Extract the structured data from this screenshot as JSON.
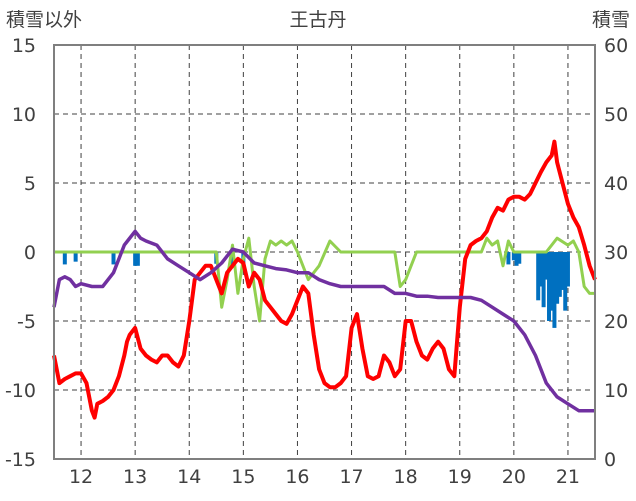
{
  "chart_data": {
    "type": "line",
    "title": "王古丹",
    "ylabel_left": "積雪以外",
    "ylabel_right": "積雪",
    "x_ticks": [
      "12",
      "13",
      "14",
      "15",
      "16",
      "17",
      "18",
      "19",
      "20",
      "21"
    ],
    "xlim": [
      11.5,
      21.5
    ],
    "ylim_left": [
      -15,
      15
    ],
    "ylim_right": [
      0,
      60
    ],
    "y_ticks_left": [
      "15",
      "10",
      "5",
      "0",
      "-5",
      "-10",
      "-15"
    ],
    "y_ticks_right": [
      "60",
      "50",
      "40",
      "30",
      "20",
      "10",
      "0"
    ],
    "grid": "dashed vertical at days, horizontal at y ticks",
    "colors": {
      "red": "#ff0000",
      "purple": "#7030a0",
      "green": "#92d050",
      "blue": "#0070c0",
      "axis": "#7f7f7f"
    },
    "series": [
      {
        "color": "#ff0000",
        "axis": "left",
        "x": [
          11.5,
          11.6,
          11.7,
          11.8,
          11.9,
          12.0,
          12.1,
          12.2,
          12.25,
          12.3,
          12.4,
          12.5,
          12.6,
          12.7,
          12.8,
          12.85,
          12.9,
          13.0,
          13.1,
          13.2,
          13.3,
          13.4,
          13.5,
          13.6,
          13.7,
          13.8,
          13.9,
          14.0,
          14.1,
          14.2,
          14.3,
          14.4,
          14.5,
          14.6,
          14.7,
          14.8,
          14.9,
          15.0,
          15.1,
          15.2,
          15.3,
          15.4,
          15.5,
          15.6,
          15.7,
          15.8,
          15.9,
          16.0,
          16.1,
          16.2,
          16.3,
          16.4,
          16.5,
          16.6,
          16.7,
          16.8,
          16.9,
          17.0,
          17.1,
          17.2,
          17.3,
          17.4,
          17.5,
          17.6,
          17.7,
          17.8,
          17.9,
          18.0,
          18.1,
          18.2,
          18.3,
          18.4,
          18.5,
          18.6,
          18.7,
          18.8,
          18.9,
          19.0,
          19.1,
          19.2,
          19.3,
          19.4,
          19.5,
          19.6,
          19.7,
          19.8,
          19.9,
          20.0,
          20.1,
          20.2,
          20.3,
          20.4,
          20.5,
          20.6,
          20.7,
          20.75,
          20.8,
          20.9,
          21.0,
          21.1,
          21.2,
          21.3,
          21.4,
          21.5
        ],
        "values": [
          -7.5,
          -9.5,
          -9.2,
          -9.0,
          -8.8,
          -8.8,
          -9.5,
          -11.5,
          -12.0,
          -11.0,
          -10.8,
          -10.5,
          -10.0,
          -9.0,
          -7.5,
          -6.5,
          -6.0,
          -5.5,
          -7.0,
          -7.5,
          -7.8,
          -8.0,
          -7.5,
          -7.5,
          -8.0,
          -8.3,
          -7.5,
          -5.0,
          -2.0,
          -1.5,
          -1.0,
          -1.0,
          -2.0,
          -3.0,
          -1.5,
          -1.0,
          -0.5,
          -0.8,
          -2.5,
          -1.5,
          -2.0,
          -3.5,
          -4.0,
          -4.5,
          -5.0,
          -5.2,
          -4.5,
          -3.5,
          -2.5,
          -3.0,
          -6.0,
          -8.5,
          -9.5,
          -9.8,
          -9.8,
          -9.5,
          -9.0,
          -5.5,
          -4.5,
          -7.0,
          -9.0,
          -9.2,
          -9.0,
          -7.5,
          -8.0,
          -9.0,
          -8.5,
          -5.0,
          -5.0,
          -6.5,
          -7.5,
          -7.8,
          -7.0,
          -6.5,
          -7.0,
          -8.5,
          -9.0,
          -4.0,
          -0.5,
          0.5,
          0.8,
          1.0,
          1.5,
          2.5,
          3.2,
          3.0,
          3.8,
          4.0,
          4.0,
          3.8,
          4.2,
          5.0,
          5.8,
          6.5,
          7.0,
          8.0,
          6.5,
          5.0,
          3.5,
          2.5,
          1.8,
          0.5,
          -1.0,
          -2.0
        ],
        "width": 4
      },
      {
        "color": "#7030a0",
        "axis": "left",
        "x": [
          11.5,
          11.6,
          11.7,
          11.8,
          11.9,
          12.0,
          12.2,
          12.4,
          12.6,
          12.8,
          13.0,
          13.1,
          13.2,
          13.4,
          13.6,
          13.8,
          14.0,
          14.2,
          14.4,
          14.6,
          14.8,
          15.0,
          15.2,
          15.4,
          15.6,
          15.8,
          16.0,
          16.2,
          16.4,
          16.6,
          16.8,
          17.0,
          17.2,
          17.4,
          17.6,
          17.8,
          18.0,
          18.2,
          18.4,
          18.6,
          18.8,
          19.0,
          19.2,
          19.4,
          19.6,
          19.8,
          20.0,
          20.2,
          20.4,
          20.6,
          20.8,
          21.0,
          21.2,
          21.4,
          21.5
        ],
        "values": [
          -4.0,
          -2.0,
          -1.8,
          -2.0,
          -2.5,
          -2.3,
          -2.5,
          -2.5,
          -1.5,
          0.5,
          1.5,
          1.0,
          0.8,
          0.5,
          -0.5,
          -1.0,
          -1.5,
          -2.0,
          -1.5,
          -0.8,
          0.2,
          0.0,
          -0.8,
          -1.0,
          -1.2,
          -1.3,
          -1.5,
          -1.5,
          -2.0,
          -2.3,
          -2.5,
          -2.5,
          -2.5,
          -2.5,
          -2.5,
          -3.0,
          -3.0,
          -3.2,
          -3.2,
          -3.3,
          -3.3,
          -3.3,
          -3.3,
          -3.5,
          -4.0,
          -4.5,
          -5.0,
          -6.0,
          -7.5,
          -9.5,
          -10.5,
          -11.0,
          -11.5,
          -11.5,
          -11.5
        ],
        "width": 3.5
      },
      {
        "color": "#92d050",
        "axis": "left",
        "x": [
          11.5,
          14.5,
          14.6,
          14.7,
          14.8,
          14.9,
          15.0,
          15.1,
          15.2,
          15.3,
          15.4,
          15.5,
          15.6,
          15.7,
          15.8,
          15.9,
          16.0,
          16.2,
          16.4,
          16.6,
          16.8,
          17.0,
          17.2,
          17.4,
          17.6,
          17.8,
          17.9,
          18.0,
          18.2,
          18.4,
          18.6,
          18.8,
          19.0,
          19.2,
          19.4,
          19.5,
          19.6,
          19.7,
          19.8,
          19.9,
          20.0,
          20.2,
          20.4,
          20.6,
          20.8,
          21.0,
          21.1,
          21.2,
          21.3,
          21.4,
          21.5
        ],
        "values": [
          0,
          0,
          -4.0,
          -2.0,
          0.5,
          -3.0,
          -0.5,
          1.0,
          -2.5,
          -5.0,
          -0.5,
          0.8,
          0.5,
          0.8,
          0.5,
          0.8,
          0.0,
          -2.0,
          -1.0,
          0.8,
          0.0,
          0.0,
          0.0,
          0.0,
          0.0,
          0.0,
          -2.5,
          -2.0,
          0.0,
          0.0,
          0.0,
          0.0,
          0.0,
          0.0,
          0.0,
          1.0,
          0.5,
          0.8,
          -1.0,
          0.8,
          0.0,
          0.0,
          0.0,
          0.0,
          1.0,
          0.5,
          0.8,
          0.0,
          -2.5,
          -3.0,
          -3.0
        ],
        "width": 3
      },
      {
        "color": "#0070c0",
        "axis": "right",
        "type": "bar",
        "x": [
          11.7,
          11.9,
          12.6,
          13.0,
          13.05,
          14.5,
          14.8,
          15.0,
          19.9,
          20.0,
          20.05,
          20.1,
          20.45,
          20.5,
          20.55,
          20.6,
          20.65,
          20.7,
          20.75,
          20.8,
          20.85,
          20.9,
          20.95,
          21.0
        ],
        "values": [
          28.2,
          28.6,
          28.2,
          28.0,
          28.0,
          28.3,
          27.8,
          28.2,
          28.2,
          28.8,
          28.0,
          28.3,
          23.0,
          25.0,
          22.0,
          26.0,
          20.0,
          21.5,
          19.0,
          22.5,
          23.5,
          24.5,
          21.5,
          25.0
        ]
      }
    ]
  }
}
